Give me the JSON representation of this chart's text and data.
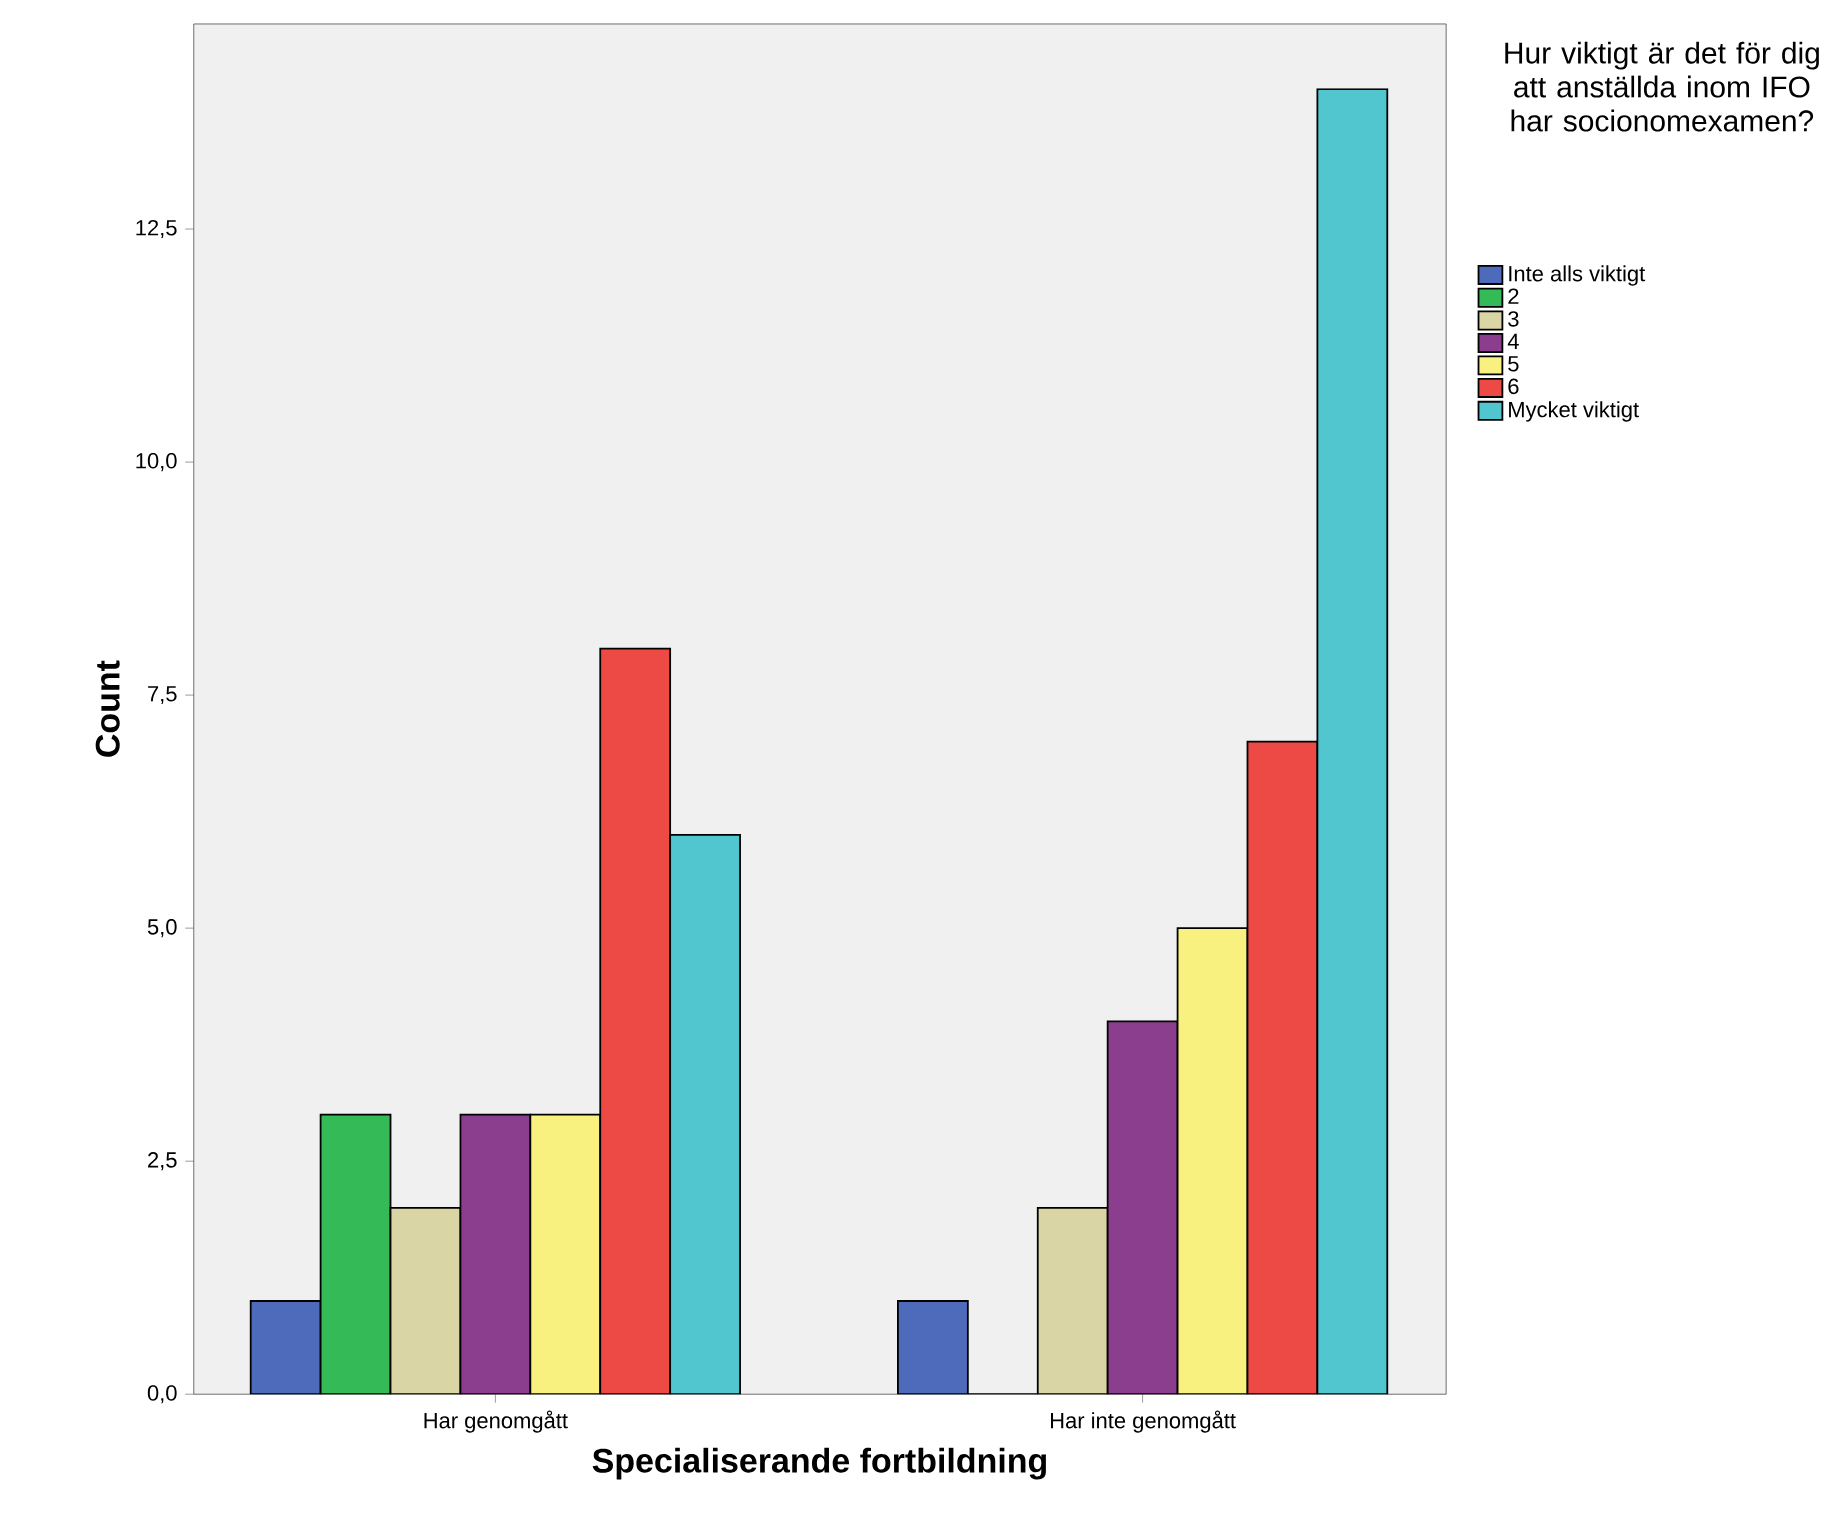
{
  "chart_data": {
    "type": "bar",
    "xlabel": "Specialiserande fortbildning",
    "ylabel": "Count",
    "legend_title": "Hur viktigt är det för dig att anställda inom IFO har socionomexamen?",
    "legend": "right",
    "grid": false,
    "categories": [
      "Har genomgått",
      "Har inte genomgått"
    ],
    "ylim": [
      0,
      14.7
    ],
    "yticks": [
      {
        "value": 0,
        "label": "0,0"
      },
      {
        "value": 2.5,
        "label": "2,5"
      },
      {
        "value": 5,
        "label": "5,0"
      },
      {
        "value": 7.5,
        "label": "7,5"
      },
      {
        "value": 10,
        "label": "10,0"
      },
      {
        "value": 12.5,
        "label": "12,5"
      }
    ],
    "series": [
      {
        "name": "Inte alls viktigt",
        "color": "#4e6bbb",
        "values": [
          1,
          1
        ]
      },
      {
        "name": "2",
        "color": "#34bb58",
        "values": [
          3,
          0
        ]
      },
      {
        "name": "3",
        "color": "#dad5a5",
        "values": [
          2,
          2
        ]
      },
      {
        "name": "4",
        "color": "#8b3d8e",
        "values": [
          3,
          4
        ]
      },
      {
        "name": "5",
        "color": "#f8f17f",
        "values": [
          3,
          5
        ]
      },
      {
        "name": "6",
        "color": "#ee4a45",
        "values": [
          8,
          7
        ]
      },
      {
        "name": "Mycket viktigt",
        "color": "#52c6cf",
        "values": [
          6,
          14
        ]
      }
    ]
  }
}
